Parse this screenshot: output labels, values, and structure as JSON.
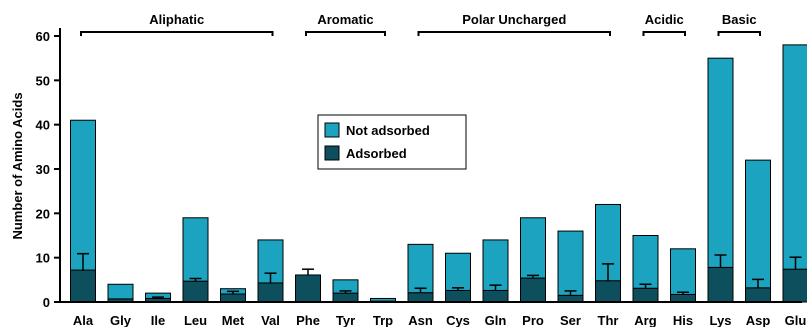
{
  "chart_data": {
    "type": "bar",
    "stacked": true,
    "title": "",
    "xlabel": "",
    "ylabel": "Number of Amino Acids",
    "ylim": [
      0,
      60
    ],
    "yticks": [
      0,
      10,
      20,
      30,
      40,
      50,
      60
    ],
    "grid": false,
    "legend_position": "center",
    "categories": [
      "Ala",
      "Gly",
      "Ile",
      "Leu",
      "Met",
      "Val",
      "Phe",
      "Tyr",
      "Trp",
      "Asn",
      "Cys",
      "Gln",
      "Pro",
      "Ser",
      "Thr",
      "Arg",
      "His",
      "Lys",
      "Asp",
      "Glu"
    ],
    "series": [
      {
        "name": "Adsorbed",
        "color": "#0d4f5c",
        "values": [
          7.2,
          0.7,
          0.8,
          4.7,
          1.8,
          4.3,
          6.1,
          2.0,
          0.2,
          2.1,
          2.6,
          2.6,
          5.4,
          1.5,
          4.8,
          3.1,
          1.7,
          7.8,
          3.2,
          7.4
        ],
        "error": [
          3.7,
          0,
          0.3,
          0.6,
          0.6,
          2.2,
          1.3,
          0.5,
          0,
          1.0,
          0.6,
          1.2,
          0.6,
          1.0,
          3.8,
          0.9,
          0.5,
          2.8,
          1.9,
          2.7
        ]
      },
      {
        "name": "Not adsorbed",
        "color": "#1ba3bf",
        "values": [
          33.8,
          3.3,
          1.2,
          14.3,
          1.2,
          9.7,
          0,
          3.0,
          0.6,
          10.9,
          8.4,
          11.4,
          13.6,
          14.5,
          17.2,
          11.9,
          10.3,
          47.2,
          28.8,
          50.6
        ]
      }
    ],
    "groups": [
      {
        "label": "Aliphatic",
        "from": 0,
        "to": 5
      },
      {
        "label": "Aromatic",
        "from": 6,
        "to": 8
      },
      {
        "label": "Polar Uncharged",
        "from": 9,
        "to": 14
      },
      {
        "label": "Acidic",
        "from": 15,
        "to": 16
      },
      {
        "label": "Basic",
        "from": 17,
        "to": 18
      }
    ]
  }
}
